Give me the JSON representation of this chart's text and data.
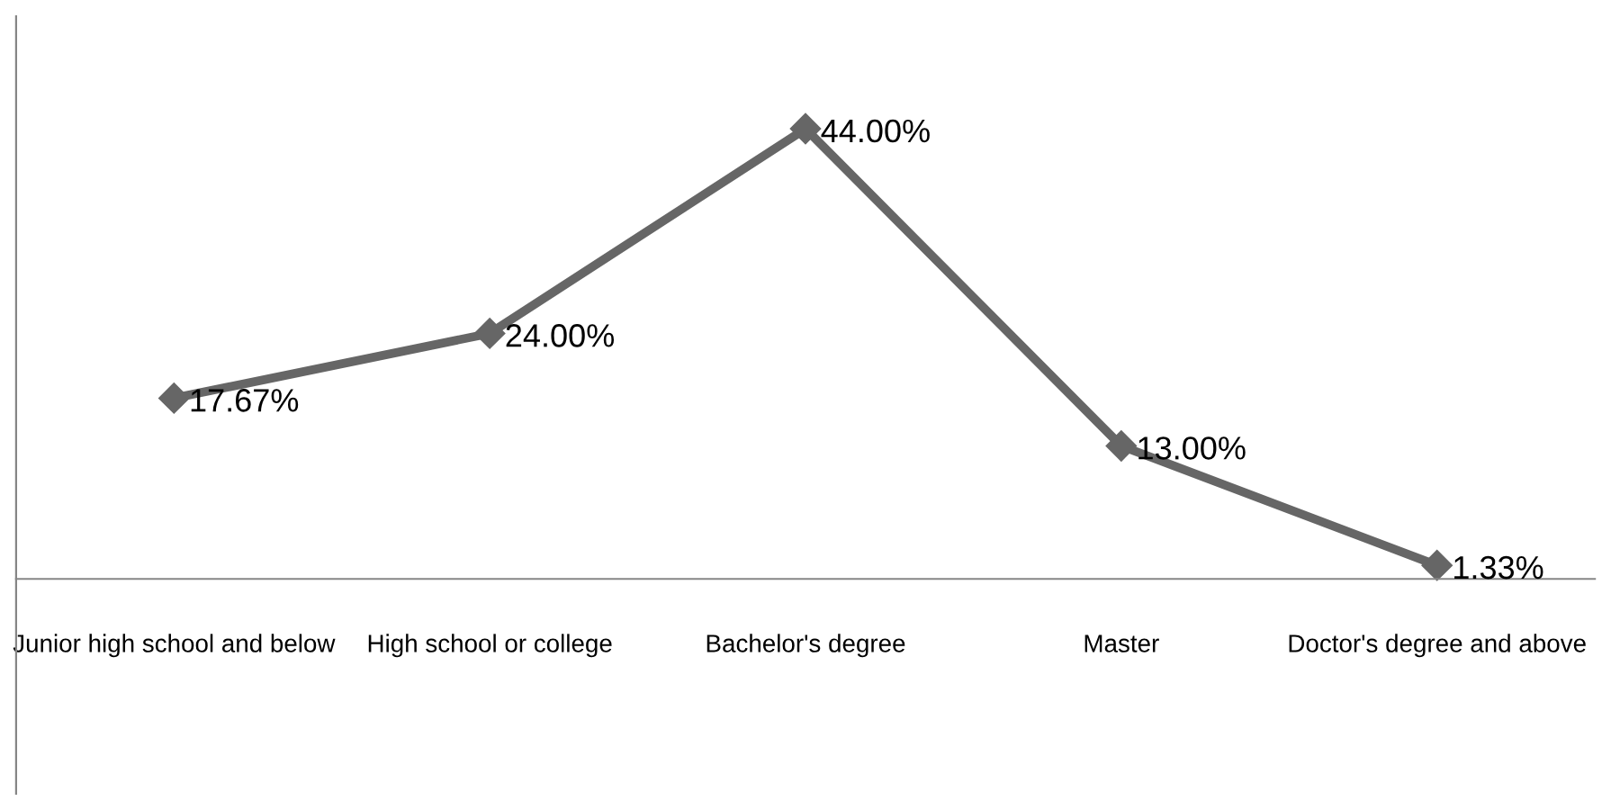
{
  "chart_data": {
    "type": "line",
    "categories": [
      "Junior high school and below",
      "High school or college",
      "Bachelor's degree",
      "Master",
      "Doctor's degree and above"
    ],
    "series": [
      {
        "color": "#666666",
        "values": [
          17.67,
          24.0,
          44.0,
          13.0,
          1.33
        ],
        "value_labels": [
          "17.67%",
          "24.00%",
          "44.00%",
          "13.00%",
          "1.33%"
        ]
      }
    ],
    "ylim": [
      -21,
      55
    ],
    "tick_labels": "x",
    "marker": "diamond",
    "line_style": "solid",
    "grid": false
  }
}
